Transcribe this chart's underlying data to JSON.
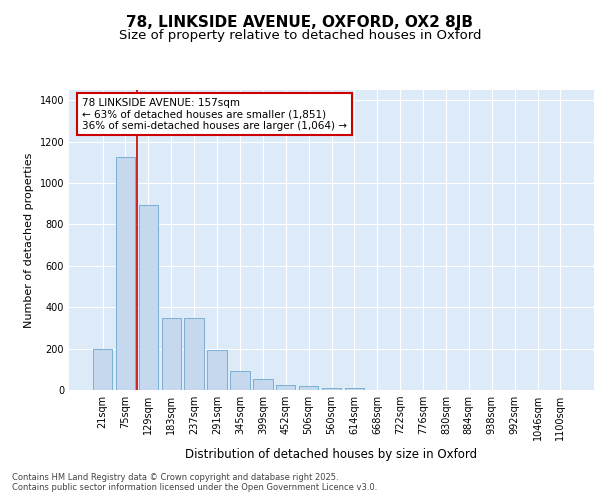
{
  "title1": "78, LINKSIDE AVENUE, OXFORD, OX2 8JB",
  "title2": "Size of property relative to detached houses in Oxford",
  "xlabel": "Distribution of detached houses by size in Oxford",
  "ylabel": "Number of detached properties",
  "categories": [
    "21sqm",
    "75sqm",
    "129sqm",
    "183sqm",
    "237sqm",
    "291sqm",
    "345sqm",
    "399sqm",
    "452sqm",
    "506sqm",
    "560sqm",
    "614sqm",
    "668sqm",
    "722sqm",
    "776sqm",
    "830sqm",
    "884sqm",
    "938sqm",
    "992sqm",
    "1046sqm",
    "1100sqm"
  ],
  "values": [
    200,
    1125,
    895,
    350,
    350,
    195,
    90,
    55,
    22,
    20,
    12,
    8,
    0,
    0,
    0,
    0,
    0,
    0,
    0,
    0,
    0
  ],
  "bar_color": "#c5d8ee",
  "bar_edge_color": "#7aafd4",
  "bg_color": "#ddeaf8",
  "grid_color": "#ffffff",
  "vline_color": "#cc0000",
  "vline_x_idx": 2,
  "annotation_text": "78 LINKSIDE AVENUE: 157sqm\n← 63% of detached houses are smaller (1,851)\n36% of semi-detached houses are larger (1,064) →",
  "annotation_box_color": "#cc0000",
  "ylim": [
    0,
    1450
  ],
  "yticks": [
    0,
    200,
    400,
    600,
    800,
    1000,
    1200,
    1400
  ],
  "footer": "Contains HM Land Registry data © Crown copyright and database right 2025.\nContains public sector information licensed under the Open Government Licence v3.0.",
  "title1_fontsize": 11,
  "title2_fontsize": 9.5,
  "xlabel_fontsize": 8.5,
  "ylabel_fontsize": 8,
  "tick_fontsize": 7,
  "annotation_fontsize": 7.5,
  "footer_fontsize": 6
}
